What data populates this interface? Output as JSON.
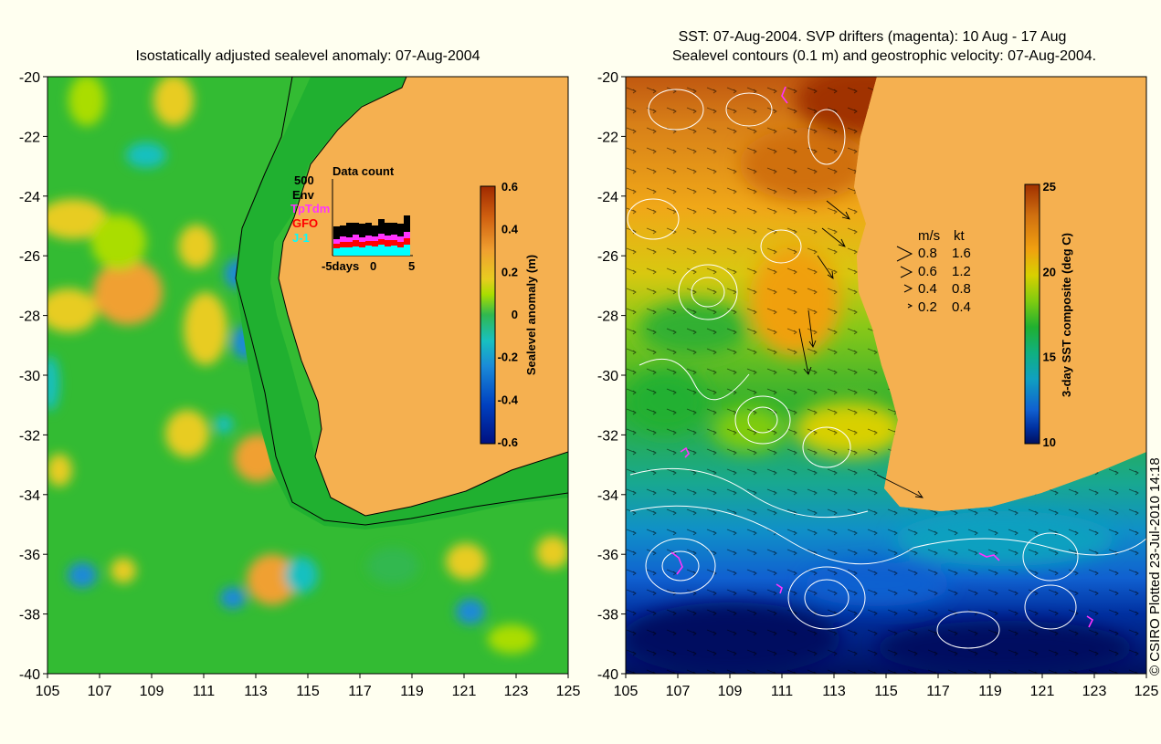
{
  "left_panel": {
    "title": "Isostatically adjusted sealevel anomaly: 07-Aug-2004",
    "x_ticks": [
      "105",
      "107",
      "109",
      "111",
      "113",
      "115",
      "117",
      "119",
      "121",
      "123",
      "125"
    ],
    "y_ticks": [
      "-20",
      "-22",
      "-24",
      "-26",
      "-28",
      "-30",
      "-32",
      "-34",
      "-36",
      "-38",
      "-40"
    ],
    "colorbar": {
      "label": "Sealevel anomaly (m)",
      "ticks": [
        "0.6",
        "0.4",
        "0.2",
        "0",
        "-0.2",
        "-0.4",
        "-0.6"
      ]
    },
    "data_count": {
      "title": "Data count",
      "ymax_label": "500",
      "legend": [
        {
          "name": "Env",
          "color": "#000000"
        },
        {
          "name": "TpTdm",
          "color": "#ff33ff"
        },
        {
          "name": "GFO",
          "color": "#ff0000"
        },
        {
          "name": "J-1",
          "color": "#00ffff"
        }
      ],
      "x_ticks": [
        "-5days",
        "0",
        "5"
      ]
    }
  },
  "right_panel": {
    "title_line1": "SST: 07-Aug-2004. SVP drifters (magenta): 10 Aug - 17 Aug",
    "title_line2": "Sealevel contours (0.1 m) and geostrophic velocity: 07-Aug-2004.",
    "x_ticks": [
      "105",
      "107",
      "109",
      "111",
      "113",
      "115",
      "117",
      "119",
      "121",
      "123",
      "125"
    ],
    "y_ticks": [
      "-20",
      "-22",
      "-24",
      "-26",
      "-28",
      "-30",
      "-32",
      "-34",
      "-36",
      "-38",
      "-40"
    ],
    "colorbar": {
      "label": "3-day SST composite (deg C)",
      "ticks": [
        "25",
        "20",
        "15",
        "10"
      ]
    },
    "velocity_legend": {
      "header_ms": "m/s",
      "header_kt": "kt",
      "rows": [
        {
          "ms": "0.8",
          "kt": "1.6"
        },
        {
          "ms": "0.6",
          "kt": "1.2"
        },
        {
          "ms": "0.4",
          "kt": "0.8"
        },
        {
          "ms": "0.2",
          "kt": "0.4"
        }
      ]
    }
  },
  "credit": "© CSIRO Plotted 23-Jul-2010 14:18",
  "colors": {
    "background": "#fffff0",
    "land": "#f5b050",
    "ocean_base_left": "#33bb33",
    "anomaly_scale": [
      "#001080",
      "#0040c0",
      "#1a8ad8",
      "#18c0c0",
      "#30b850",
      "#60cc20",
      "#aadd00",
      "#e8cc20",
      "#f0a030",
      "#d06010",
      "#a02a00"
    ],
    "sst_scale": [
      "#001060",
      "#0030a0",
      "#1060d0",
      "#10a0c0",
      "#10b080",
      "#20b030",
      "#80cc10",
      "#d8d000",
      "#f0a010",
      "#d07010",
      "#a03000"
    ]
  }
}
